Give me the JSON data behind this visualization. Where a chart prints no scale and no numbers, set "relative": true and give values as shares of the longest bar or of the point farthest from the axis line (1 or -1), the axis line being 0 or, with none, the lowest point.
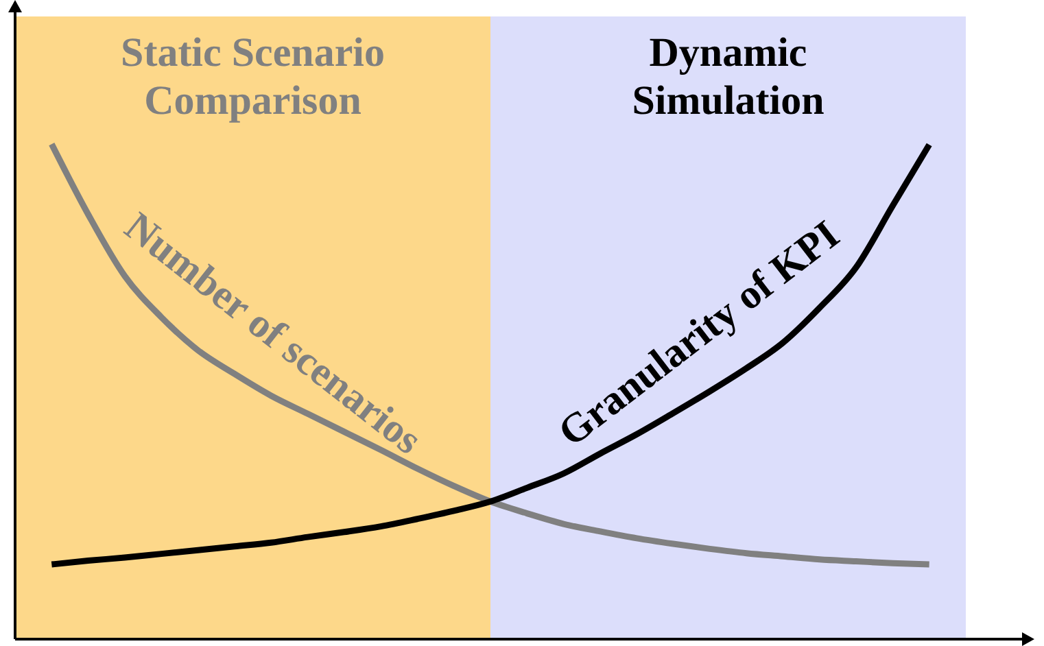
{
  "chart_data": {
    "type": "line",
    "relative": true,
    "categories": [
      null,
      null,
      null,
      null,
      null,
      null,
      null,
      null,
      null,
      null,
      null,
      null,
      null,
      null,
      null,
      null,
      null,
      null,
      null,
      null,
      null,
      null,
      null,
      null,
      null,
      null,
      null
    ],
    "series": [
      {
        "name": "Static Scenario Comparison",
        "type": "area",
        "color": "#fdd88a",
        "values": [
          1,
          1,
          1,
          1,
          1,
          1,
          1,
          1,
          1,
          1,
          1,
          1,
          1,
          1,
          null,
          null,
          null,
          null,
          null,
          null,
          null,
          null,
          null,
          null,
          null,
          null,
          null
        ]
      },
      {
        "name": "Dynamic Simulation",
        "type": "area",
        "color": "#dcdefb",
        "values": [
          null,
          null,
          null,
          null,
          null,
          null,
          null,
          null,
          null,
          null,
          null,
          null,
          null,
          1,
          1,
          1,
          1,
          1,
          1,
          1,
          1,
          1,
          1,
          1,
          1,
          1,
          1
        ]
      },
      {
        "name": "Number of scenarios",
        "color": "#808080",
        "values": [
          null,
          0.795,
          0.682,
          0.583,
          0.517,
          0.464,
          0.426,
          0.391,
          0.362,
          0.333,
          0.304,
          0.274,
          0.246,
          0.221,
          0.202,
          0.185,
          0.173,
          0.162,
          0.153,
          0.145,
          0.138,
          0.133,
          0.128,
          0.125,
          0.122,
          0.12,
          null
        ]
      },
      {
        "name": "Granularity of KPI",
        "color": "#000000",
        "values": [
          null,
          0.12,
          0.126,
          0.131,
          0.137,
          0.143,
          0.149,
          0.155,
          0.164,
          0.172,
          0.181,
          0.193,
          0.206,
          0.221,
          0.243,
          0.266,
          0.298,
          0.329,
          0.363,
          0.398,
          0.435,
          0.476,
          0.532,
          0.597,
          0.696,
          0.794,
          null
        ]
      }
    ]
  }
}
